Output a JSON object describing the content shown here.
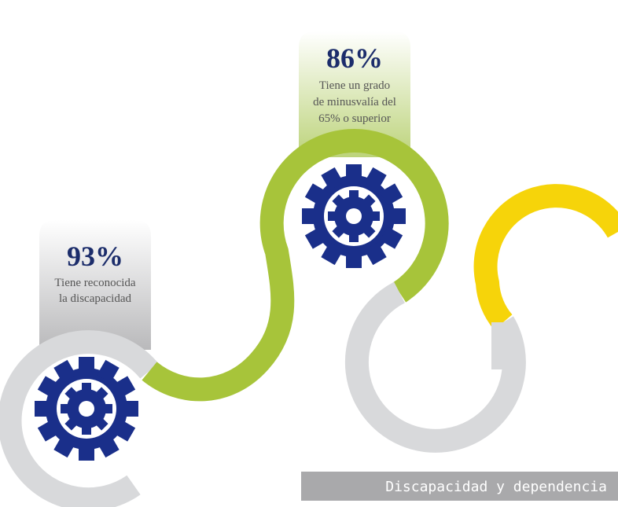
{
  "items": [
    {
      "value": "93%",
      "description": [
        "Tiene reconocida",
        "la discapacidad"
      ]
    },
    {
      "value": "86%",
      "description": [
        "Tiene un grado",
        "de minusvalía del",
        "65% o superior"
      ]
    }
  ],
  "footer": "Discapacidad y dependencia"
}
